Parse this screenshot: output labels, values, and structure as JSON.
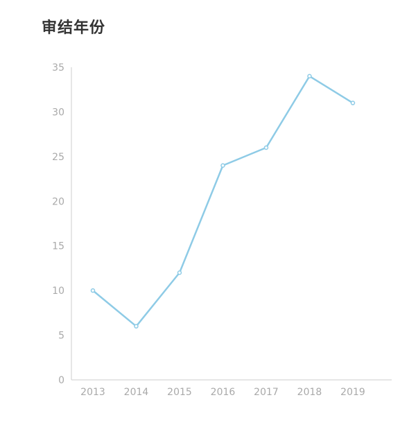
{
  "chart_data": {
    "type": "line",
    "title": "审结年份",
    "xlabel": "",
    "ylabel": "",
    "categories": [
      "2013",
      "2014",
      "2015",
      "2016",
      "2017",
      "2018",
      "2019"
    ],
    "series": [
      {
        "values": [
          10,
          6,
          12,
          24,
          26,
          34,
          31
        ]
      }
    ],
    "ylim": [
      0,
      35
    ],
    "yticks": [
      0,
      5,
      10,
      15,
      20,
      25,
      30,
      35
    ],
    "grid": false,
    "line_color": "#8ecbe6",
    "axis_color": "#cccccc",
    "tick_label_color": "#a9a9a9"
  }
}
